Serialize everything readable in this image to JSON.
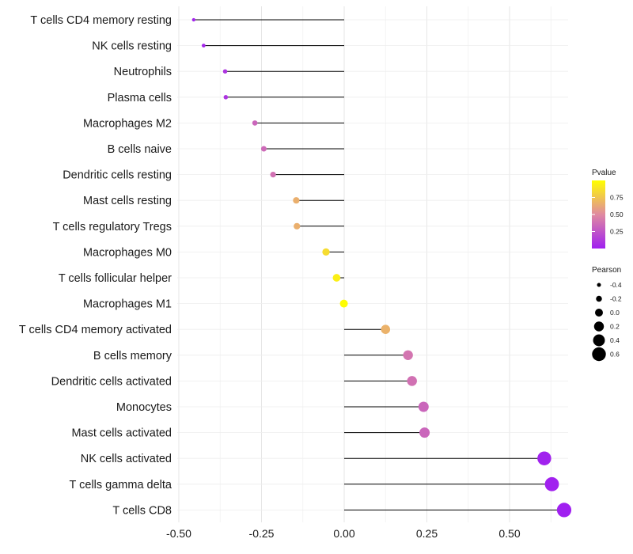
{
  "chart_data": {
    "type": "lollipop",
    "categories": [
      "T cells CD4 memory resting",
      "NK cells resting",
      "Neutrophils",
      "Plasma cells",
      "Macrophages M2",
      "B cells naive",
      "Dendritic cells resting",
      "Mast cells resting",
      "T cells regulatory  Tregs ",
      "Macrophages M0",
      "T cells follicular helper",
      "Macrophages M1",
      "T cells CD4 memory activated",
      "B cells memory",
      "Dendritic cells activated",
      "Monocytes",
      "Mast cells activated",
      "NK cells activated",
      "T cells gamma delta",
      "T cells CD8"
    ],
    "pearson": [
      -0.455,
      -0.425,
      -0.36,
      -0.358,
      -0.27,
      -0.243,
      -0.215,
      -0.145,
      -0.143,
      -0.055,
      -0.023,
      -0.001,
      0.125,
      0.193,
      0.205,
      0.24,
      0.243,
      0.605,
      0.628,
      0.665
    ],
    "pvalue": [
      0.02,
      0.03,
      0.1,
      0.1,
      0.33,
      0.35,
      0.38,
      0.66,
      0.66,
      0.85,
      0.93,
      0.99,
      0.67,
      0.4,
      0.38,
      0.33,
      0.33,
      0.01,
      0.005,
      0.001
    ],
    "xlim": [
      -0.5,
      0.7
    ],
    "xticks": [
      -0.5,
      -0.25,
      0.0,
      0.25,
      0.5
    ],
    "xtick_labels": [
      "-0.50",
      "-0.25",
      "0.00",
      "0.25",
      "0.50"
    ],
    "xlabel": "",
    "ylabel": "",
    "grid": true,
    "color_legend": {
      "title": "Pvalue",
      "labels": [
        "0.75",
        "0.50",
        "0.25"
      ],
      "values": [
        0.75,
        0.5,
        0.25
      ],
      "range": [
        0,
        1
      ],
      "low_color": "#a020f0",
      "high_color": "#ffff00"
    },
    "size_legend": {
      "title": "Pearson",
      "labels": [
        "-0.4",
        "-0.2",
        "0.0",
        "0.2",
        "0.4",
        "0.6"
      ],
      "values": [
        -0.4,
        -0.2,
        0.0,
        0.2,
        0.4,
        0.6
      ]
    }
  }
}
